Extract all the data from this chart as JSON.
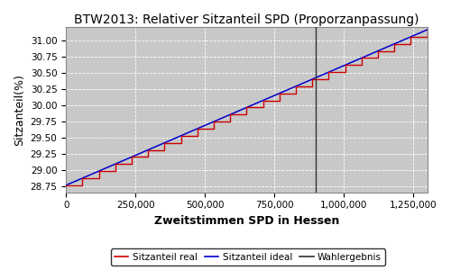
{
  "title": "BTW2013: Relativer Sitzanteil SPD (Proporzanpassung)",
  "xlabel": "Zweitstimmen SPD in Hessen",
  "ylabel": "Sitzanteil(%)",
  "background_color": "#c8c8c8",
  "fig_facecolor": "#ffffff",
  "xlim": [
    0,
    1300000
  ],
  "ylim": [
    28.65,
    31.2
  ],
  "wahlergebnis_x": 900000,
  "ideal_start_x": 0,
  "ideal_start_y": 28.76,
  "ideal_end_x": 1300000,
  "ideal_end_y": 31.16,
  "num_steps": 22,
  "legend_labels": [
    "Sitzanteil real",
    "Sitzanteil ideal",
    "Wahlergebnis"
  ],
  "legend_colors": [
    "#cc0000",
    "#0000cc",
    "#333333"
  ],
  "title_fontsize": 10,
  "axis_label_fontsize": 9,
  "tick_fontsize": 7.5,
  "legend_fontsize": 7.5
}
